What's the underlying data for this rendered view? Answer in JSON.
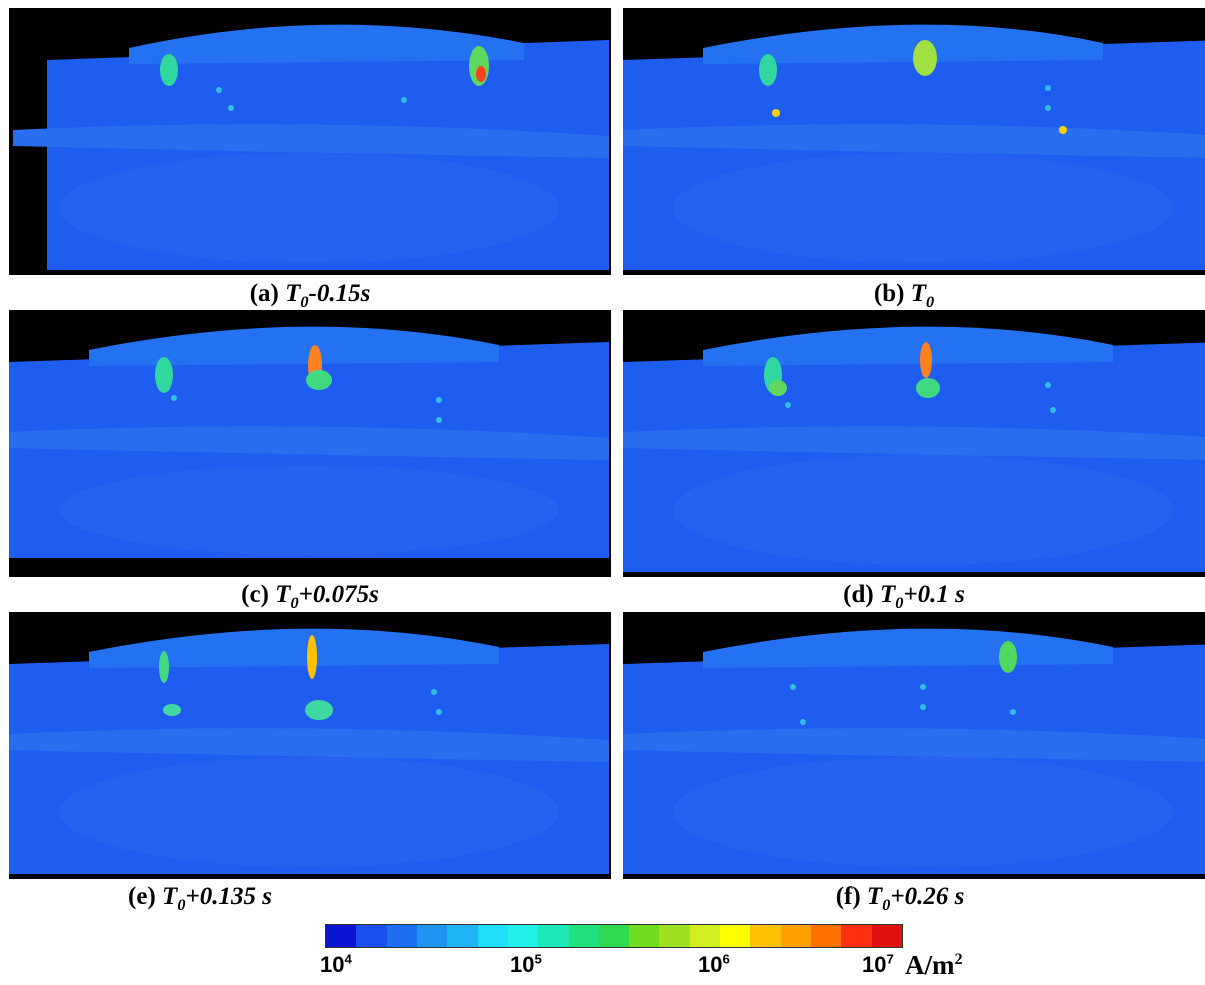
{
  "panels": [
    {
      "letter": "(a)",
      "time": "-0.15s"
    },
    {
      "letter": "(b)",
      "time": ""
    },
    {
      "letter": "(c)",
      "time": "+0.075s"
    },
    {
      "letter": "(d)",
      "time": "+0.1 s"
    },
    {
      "letter": "(e)",
      "time": "+0.135 s"
    },
    {
      "letter": "(f)",
      "time": "+0.26 s"
    }
  ],
  "time_symbol": "T",
  "time_subscript": "0",
  "colorbar": {
    "colors": [
      "#0a14d0",
      "#1a4ff0",
      "#1e6ff0",
      "#1f93f0",
      "#1fb4f3",
      "#20ddf8",
      "#20f0e6",
      "#20e8b8",
      "#20e080",
      "#30d850",
      "#70dc20",
      "#a0e020",
      "#d0ee20",
      "#ffff00",
      "#ffc000",
      "#ffa000",
      "#ff7000",
      "#ff3010",
      "#e01010"
    ],
    "ticks": [
      {
        "base": "10",
        "exp": "4"
      },
      {
        "base": "10",
        "exp": "5"
      },
      {
        "base": "10",
        "exp": "6"
      },
      {
        "base": "10",
        "exp": "7"
      }
    ],
    "unit_base": "A/m",
    "unit_exp": "2"
  }
}
